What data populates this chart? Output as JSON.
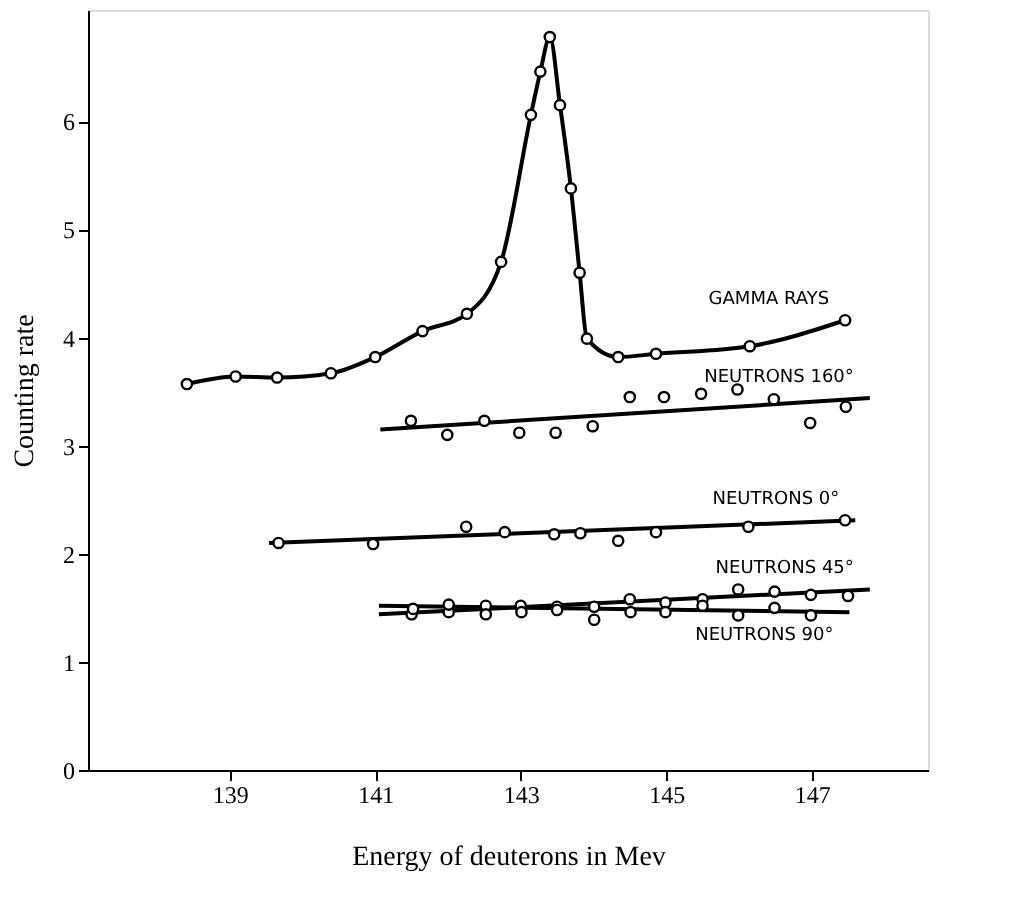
{
  "chart_data": {
    "type": "line",
    "xlabel": "Energy of deuterons in Mev",
    "ylabel": "Counting rate",
    "xlim": [
      137.05,
      148.6
    ],
    "xticks": [
      139,
      141,
      143,
      145,
      147
    ],
    "ylim": [
      0,
      7.03
    ],
    "yticks": [
      0,
      1,
      2,
      3,
      4,
      5,
      6
    ],
    "grid": false,
    "legend": false,
    "series": [
      {
        "name": "GAMMA RAYS",
        "marker": "circle",
        "color": "#000000",
        "x": [
          138.41,
          139.08,
          139.65,
          140.39,
          141.0,
          141.65,
          142.26,
          142.73,
          143.14,
          143.27,
          143.4,
          143.54,
          143.69,
          143.81,
          143.91,
          144.34,
          144.86,
          146.15,
          147.46
        ],
        "values": [
          3.57,
          3.64,
          3.63,
          3.67,
          3.82,
          4.06,
          4.22,
          4.7,
          6.06,
          6.46,
          6.78,
          6.15,
          5.38,
          4.6,
          3.99,
          3.82,
          3.85,
          3.92,
          4.16
        ]
      },
      {
        "type": "scatter",
        "marker": "circle",
        "color": "#000000",
        "x": [
          141.49,
          141.99,
          142.5,
          142.98,
          143.48,
          143.99,
          144.5,
          144.97,
          145.48,
          145.98,
          146.48,
          146.98,
          147.47
        ],
        "values": [
          3.23,
          3.1,
          3.23,
          3.12,
          3.12,
          3.18,
          3.45,
          3.45,
          3.48,
          3.52,
          3.43,
          3.21,
          3.36
        ]
      },
      {
        "name": "NEUTRONS 160°",
        "marker": "none",
        "color": "#000000",
        "x": [
          141.07,
          147.8
        ],
        "values": [
          3.15,
          3.44
        ]
      },
      {
        "type": "scatter",
        "marker": "circle",
        "color": "#000000",
        "x": [
          139.67,
          140.97,
          142.25,
          142.78,
          143.46,
          143.82,
          144.34,
          144.86,
          146.13,
          147.46
        ],
        "values": [
          2.1,
          2.09,
          2.25,
          2.2,
          2.18,
          2.19,
          2.12,
          2.2,
          2.25,
          2.31
        ]
      },
      {
        "name": "NEUTRONS 0°",
        "marker": "none",
        "color": "#000000",
        "x": [
          139.54,
          147.6
        ],
        "values": [
          2.1,
          2.31
        ]
      },
      {
        "type": "scatter",
        "marker": "circle",
        "color": "#000000",
        "x": [
          141.5,
          142.01,
          142.52,
          143.0,
          143.5,
          144.01,
          144.5,
          144.99,
          145.5,
          145.99,
          146.49,
          146.99,
          147.5
        ],
        "values": [
          1.44,
          1.46,
          1.52,
          1.52,
          1.51,
          1.51,
          1.58,
          1.55,
          1.58,
          1.67,
          1.65,
          1.62,
          1.61
        ]
      },
      {
        "name": "NEUTRONS 45°",
        "marker": "none",
        "color": "#000000",
        "x": [
          141.05,
          147.8
        ],
        "values": [
          1.44,
          1.67
        ]
      },
      {
        "type": "scatter",
        "marker": "circle",
        "color": "#000000",
        "x": [
          141.52,
          142.01,
          142.52,
          143.01,
          143.5,
          144.01,
          144.51,
          144.99,
          145.5,
          145.99,
          146.49,
          146.99
        ],
        "values": [
          1.49,
          1.53,
          1.44,
          1.46,
          1.48,
          1.39,
          1.46,
          1.46,
          1.52,
          1.43,
          1.5,
          1.43
        ]
      },
      {
        "name": "NEUTRONS 90°",
        "marker": "none",
        "color": "#000000",
        "x": [
          141.05,
          147.52
        ],
        "values": [
          1.52,
          1.46
        ]
      }
    ]
  }
}
